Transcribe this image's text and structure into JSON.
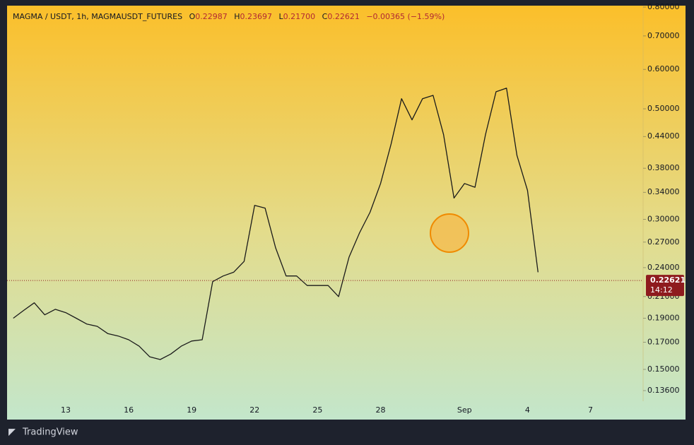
{
  "header": {
    "symbol": "MAGMA / USDT, 1h, MAGMAUSDT_FUTURES",
    "o": "O",
    "open": "0.22987",
    "h": "H",
    "high": "0.23697",
    "l": "L",
    "low": "0.21700",
    "c": "C",
    "close": "0.22621",
    "change": "−0.00365 (−1.59%)"
  },
  "footer": {
    "brand": "TradingView"
  },
  "chart_data": {
    "type": "line",
    "color": "#1a1a1a",
    "log_scale": true,
    "categories": [
      null,
      null,
      null,
      null,
      null,
      "13",
      null,
      null,
      null,
      null,
      null,
      "16",
      null,
      null,
      null,
      null,
      null,
      "19",
      null,
      null,
      null,
      null,
      null,
      "22",
      null,
      null,
      null,
      null,
      null,
      "25",
      null,
      null,
      null,
      null,
      null,
      "28",
      null,
      null,
      null,
      null,
      null,
      null,
      null,
      "Sep",
      null,
      null,
      null,
      null,
      null,
      "4",
      null,
      null,
      null,
      null,
      null,
      "7",
      null,
      null,
      null,
      null,
      null,
      null,
      null,
      null
    ],
    "values": [
      0.19,
      0.197,
      0.204,
      0.193,
      0.198,
      0.195,
      0.19,
      0.185,
      0.183,
      0.177,
      0.175,
      0.172,
      0.167,
      0.159,
      0.157,
      0.161,
      0.167,
      0.171,
      0.172,
      0.225,
      0.231,
      0.235,
      0.247,
      0.32,
      0.316,
      0.263,
      0.231,
      0.231,
      0.221,
      0.221,
      0.221,
      0.21,
      0.252,
      0.282,
      0.31,
      0.354,
      0.425,
      0.524,
      0.475,
      0.524,
      0.532,
      0.444,
      0.331,
      0.354,
      0.348,
      0.444,
      0.541,
      0.55,
      0.403,
      0.343,
      0.235,
      null,
      null,
      null,
      null,
      null,
      null,
      null,
      null,
      null,
      null,
      null,
      null,
      null
    ],
    "ylim": [
      0.1295,
      0.8
    ],
    "yticks": [
      {
        "value": 0.8,
        "label": "0.80000"
      },
      {
        "value": 0.7,
        "label": "0.70000"
      },
      {
        "value": 0.6,
        "label": "0.60000"
      },
      {
        "value": 0.5,
        "label": "0.50000"
      },
      {
        "value": 0.44,
        "label": "0.44000"
      },
      {
        "value": 0.38,
        "label": "0.38000"
      },
      {
        "value": 0.34,
        "label": "0.34000"
      },
      {
        "value": 0.3,
        "label": "0.30000"
      },
      {
        "value": 0.27,
        "label": "0.27000"
      },
      {
        "value": 0.24,
        "label": "0.24000"
      },
      {
        "value": 0.21,
        "label": "0.21000"
      },
      {
        "value": 0.19,
        "label": "0.19000"
      },
      {
        "value": 0.17,
        "label": "0.17000"
      },
      {
        "value": 0.15,
        "label": "0.15000"
      },
      {
        "value": 0.136,
        "label": "0.13600"
      }
    ],
    "last_price": 0.22621,
    "countdown": "14:12",
    "last_color": "#8e1b1e"
  }
}
